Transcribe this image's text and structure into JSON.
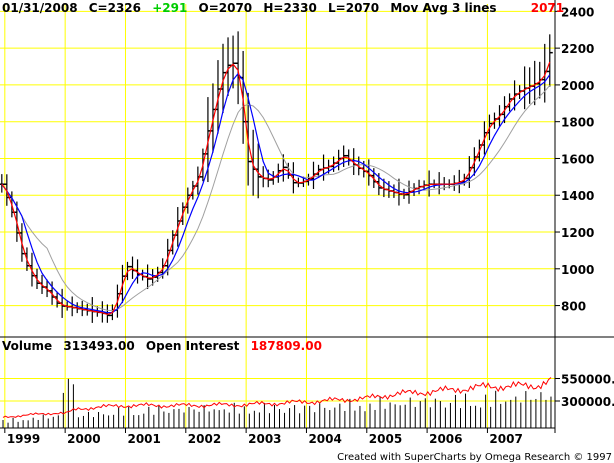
{
  "header": {
    "date": "01/31/2008",
    "close": "C=2326",
    "change": "+291",
    "open": "O=2070",
    "high": "H=2330",
    "low": "L=2070",
    "mov_avg_label": "Mov Avg 3 lines",
    "mov_avg_value": "2071"
  },
  "volume_header": {
    "volume_label": "Volume",
    "volume_value": "313493.00",
    "oi_label": "Open Interest",
    "oi_value": "187809.00"
  },
  "credit": "Created with SuperCharts by Omega Research © 1997",
  "colors": {
    "grid": "#ffff00",
    "bars": "#000000",
    "fast_ma": "#ff0000",
    "mid_ma": "#0000ff",
    "slow_ma": "#a0a0a0",
    "change": "#00cc00",
    "value_red": "#ff0000"
  },
  "chart_data": [
    {
      "type": "ohlc",
      "title": "",
      "y_ticks": [
        800,
        1000,
        1200,
        1400,
        1600,
        1800,
        2000,
        2200,
        2400
      ],
      "ylim": [
        640,
        2440
      ],
      "x_ticks": [
        "1999",
        "2000",
        "2001",
        "2002",
        "2003",
        "2004",
        "2005",
        "2006",
        "2007"
      ],
      "xlim": [
        1998.92,
        2008.12
      ],
      "grid": true,
      "series": [
        {
          "name": "price",
          "style": "ohlc_bars"
        },
        {
          "name": "fast_ma",
          "style": "line"
        },
        {
          "name": "mid_ma",
          "style": "line"
        },
        {
          "name": "slow_ma",
          "style": "line"
        }
      ],
      "close_anchors": [
        [
          1998.95,
          1460
        ],
        [
          1999.1,
          1330
        ],
        [
          1999.3,
          1060
        ],
        [
          1999.5,
          930
        ],
        [
          1999.7,
          880
        ],
        [
          1999.9,
          800
        ],
        [
          2000.1,
          790
        ],
        [
          2000.4,
          770
        ],
        [
          2000.6,
          760
        ],
        [
          2000.75,
          740
        ],
        [
          2000.9,
          900
        ],
        [
          2001.0,
          1020
        ],
        [
          2001.2,
          970
        ],
        [
          2001.4,
          940
        ],
        [
          2001.6,
          1000
        ],
        [
          2001.8,
          1200
        ],
        [
          2002.0,
          1380
        ],
        [
          2002.2,
          1500
        ],
        [
          2002.4,
          1800
        ],
        [
          2002.55,
          2000
        ],
        [
          2002.65,
          2100
        ],
        [
          2002.8,
          2120
        ],
        [
          2002.9,
          2000
        ],
        [
          2003.0,
          1600
        ],
        [
          2003.2,
          1500
        ],
        [
          2003.4,
          1480
        ],
        [
          2003.6,
          1560
        ],
        [
          2003.8,
          1460
        ],
        [
          2004.0,
          1480
        ],
        [
          2004.2,
          1540
        ],
        [
          2004.4,
          1560
        ],
        [
          2004.6,
          1620
        ],
        [
          2004.8,
          1560
        ],
        [
          2005.0,
          1520
        ],
        [
          2005.2,
          1440
        ],
        [
          2005.4,
          1420
        ],
        [
          2005.6,
          1400
        ],
        [
          2005.8,
          1440
        ],
        [
          2006.0,
          1460
        ],
        [
          2006.2,
          1460
        ],
        [
          2006.4,
          1460
        ],
        [
          2006.6,
          1480
        ],
        [
          2006.8,
          1620
        ],
        [
          2007.0,
          1780
        ],
        [
          2007.2,
          1840
        ],
        [
          2007.4,
          1940
        ],
        [
          2007.6,
          1980
        ],
        [
          2007.75,
          2000
        ],
        [
          2007.85,
          2020
        ],
        [
          2008.0,
          2100
        ],
        [
          2008.1,
          2326
        ]
      ],
      "vol_ticks": [
        300000,
        550000
      ],
      "vol_tick_labels": [
        "300000.0",
        "550000.0"
      ],
      "vol_ylim": [
        0,
        800000
      ],
      "volume_profile": [
        [
          1998.95,
          90000
        ],
        [
          1999.5,
          130000
        ],
        [
          1999.9,
          160000
        ],
        [
          2000.0,
          650000
        ],
        [
          2000.1,
          720000
        ],
        [
          2000.2,
          160000
        ],
        [
          2001.0,
          230000
        ],
        [
          2003.0,
          260000
        ],
        [
          2004.0,
          270000
        ],
        [
          2005.0,
          310000
        ],
        [
          2006.0,
          350000
        ],
        [
          2007.0,
          380000
        ],
        [
          2008.0,
          420000
        ]
      ],
      "oi_profile": [
        [
          1998.95,
          120000
        ],
        [
          1999.5,
          150000
        ],
        [
          1999.9,
          170000
        ],
        [
          2000.0,
          160000
        ],
        [
          2000.2,
          210000
        ],
        [
          2000.5,
          230000
        ],
        [
          2001.0,
          250000
        ],
        [
          2002.0,
          250000
        ],
        [
          2003.0,
          260000
        ],
        [
          2004.0,
          290000
        ],
        [
          2005.0,
          330000
        ],
        [
          2005.5,
          380000
        ],
        [
          2006.0,
          400000
        ],
        [
          2007.0,
          460000
        ],
        [
          2007.8,
          470000
        ],
        [
          2008.1,
          540000
        ]
      ]
    }
  ]
}
